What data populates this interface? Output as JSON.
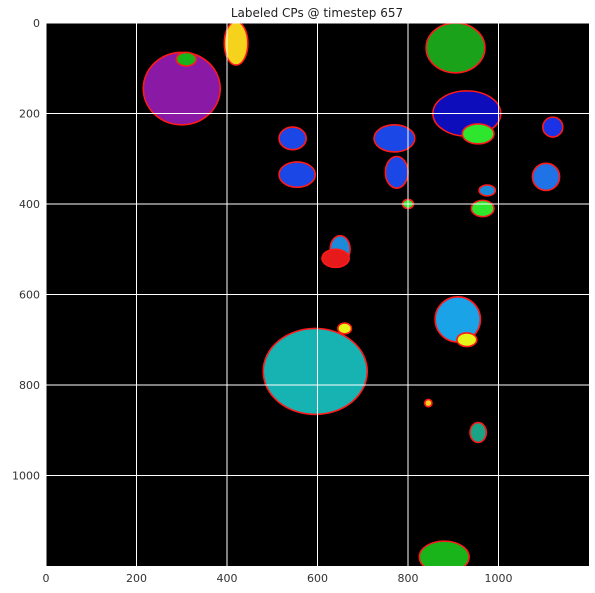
{
  "chart_data": {
    "type": "heatmap",
    "title": "Labeled CPs @ timestep 657",
    "xlabel": "",
    "ylabel": "",
    "xlim": [
      0,
      1200
    ],
    "ylim": [
      1200,
      0
    ],
    "x_ticks": [
      0,
      200,
      400,
      600,
      800,
      1000
    ],
    "y_ticks": [
      0,
      200,
      400,
      600,
      800,
      1000
    ],
    "x_tick_labels": [
      "0",
      "200",
      "400",
      "600",
      "800",
      "1000"
    ],
    "y_tick_labels": [
      "0",
      "200",
      "400",
      "600",
      "800",
      "1000"
    ],
    "grid": true,
    "background_color": "#000000",
    "boundary_color": "#ff1a1a",
    "regions": [
      {
        "color": "#8a1aa6",
        "cx": 300,
        "cy": 145,
        "rx": 85,
        "ry": 80
      },
      {
        "color": "#19b31a",
        "cx": 310,
        "cy": 80,
        "rx": 22,
        "ry": 15
      },
      {
        "color": "#f5d21b",
        "cx": 420,
        "cy": 45,
        "rx": 26,
        "ry": 48
      },
      {
        "color": "#1aa31a",
        "cx": 905,
        "cy": 55,
        "rx": 65,
        "ry": 55
      },
      {
        "color": "#0d0dbb",
        "cx": 930,
        "cy": 200,
        "rx": 75,
        "ry": 50
      },
      {
        "color": "#2ee62e",
        "cx": 955,
        "cy": 245,
        "rx": 35,
        "ry": 22
      },
      {
        "color": "#1a47e6",
        "cx": 770,
        "cy": 255,
        "rx": 45,
        "ry": 30
      },
      {
        "color": "#1a47e6",
        "cx": 775,
        "cy": 330,
        "rx": 25,
        "ry": 35
      },
      {
        "color": "#1a47e6",
        "cx": 555,
        "cy": 335,
        "rx": 40,
        "ry": 28
      },
      {
        "color": "#1a47e6",
        "cx": 545,
        "cy": 255,
        "rx": 30,
        "ry": 25
      },
      {
        "color": "#1f73e6",
        "cx": 1105,
        "cy": 340,
        "rx": 30,
        "ry": 30
      },
      {
        "color": "#1a33e6",
        "cx": 1120,
        "cy": 230,
        "rx": 22,
        "ry": 22
      },
      {
        "color": "#1a8ad9",
        "cx": 650,
        "cy": 500,
        "rx": 22,
        "ry": 30
      },
      {
        "color": "#e61a1a",
        "cx": 640,
        "cy": 520,
        "rx": 30,
        "ry": 20
      },
      {
        "color": "#1aa3e6",
        "cx": 910,
        "cy": 655,
        "rx": 50,
        "ry": 50
      },
      {
        "color": "#e6f51a",
        "cx": 930,
        "cy": 700,
        "rx": 22,
        "ry": 15
      },
      {
        "color": "#17b3b3",
        "cx": 595,
        "cy": 770,
        "rx": 115,
        "ry": 95
      },
      {
        "color": "#e6f51a",
        "cx": 660,
        "cy": 675,
        "rx": 15,
        "ry": 12
      },
      {
        "color": "#2ee62e",
        "cx": 965,
        "cy": 410,
        "rx": 25,
        "ry": 18
      },
      {
        "color": "#1aa385",
        "cx": 955,
        "cy": 905,
        "rx": 18,
        "ry": 22
      },
      {
        "color": "#19b31a",
        "cx": 880,
        "cy": 1180,
        "rx": 55,
        "ry": 35
      },
      {
        "color": "#f5d21b",
        "cx": 845,
        "cy": 840,
        "rx": 8,
        "ry": 8
      },
      {
        "color": "#2ee62e",
        "cx": 800,
        "cy": 400,
        "rx": 12,
        "ry": 10
      },
      {
        "color": "#1a8ad9",
        "cx": 975,
        "cy": 370,
        "rx": 18,
        "ry": 12
      }
    ]
  }
}
